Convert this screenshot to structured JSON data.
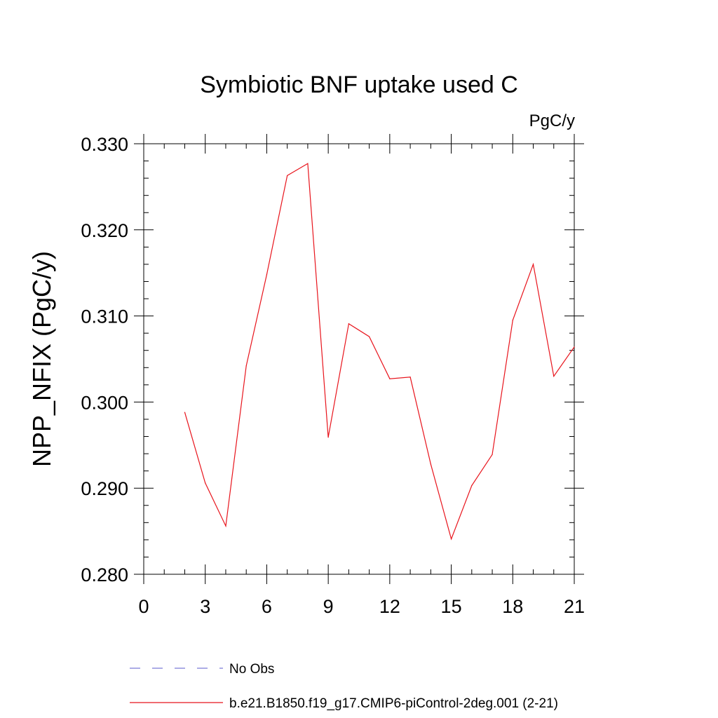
{
  "chart_data": {
    "type": "line",
    "title": "Symbiotic BNF uptake used C",
    "units_label": "PgC/y",
    "ylabel": "NPP_NFIX  (PgC/y)",
    "xlabel": "",
    "xlim": [
      0,
      21
    ],
    "ylim": [
      0.28,
      0.33
    ],
    "x_ticks": [
      0,
      3,
      6,
      9,
      12,
      15,
      18,
      21
    ],
    "x_tick_labels": [
      "0",
      "3",
      "6",
      "9",
      "12",
      "15",
      "18",
      "21"
    ],
    "y_ticks": [
      0.28,
      0.29,
      0.3,
      0.31,
      0.32,
      0.33
    ],
    "y_tick_labels": [
      "0.280",
      "0.290",
      "0.300",
      "0.310",
      "0.320",
      "0.330"
    ],
    "series": [
      {
        "name": "b.e21.B1850.f19_g17.CMIP6-piControl-2deg.001 (2-21)",
        "color": "#e8141c",
        "style": "solid",
        "x": [
          2,
          3,
          4,
          5,
          6,
          7,
          8,
          9,
          10,
          11,
          12,
          13,
          14,
          15,
          16,
          17,
          18,
          19,
          20,
          21
        ],
        "y": [
          0.2988,
          0.2906,
          0.2856,
          0.3042,
          0.3148,
          0.3263,
          0.3277,
          0.2959,
          0.3091,
          0.3076,
          0.3027,
          0.3029,
          0.2928,
          0.2841,
          0.2903,
          0.2939,
          0.3095,
          0.316,
          0.303,
          0.3064
        ]
      }
    ],
    "legend": {
      "placement": "bottom",
      "entries": [
        {
          "label": "No Obs",
          "color": "#7b7bd6",
          "style": "dashed"
        },
        {
          "label": "b.e21.B1850.f19_g17.CMIP6-piControl-2deg.001 (2-21)",
          "color": "#e8141c",
          "style": "solid"
        }
      ]
    }
  }
}
